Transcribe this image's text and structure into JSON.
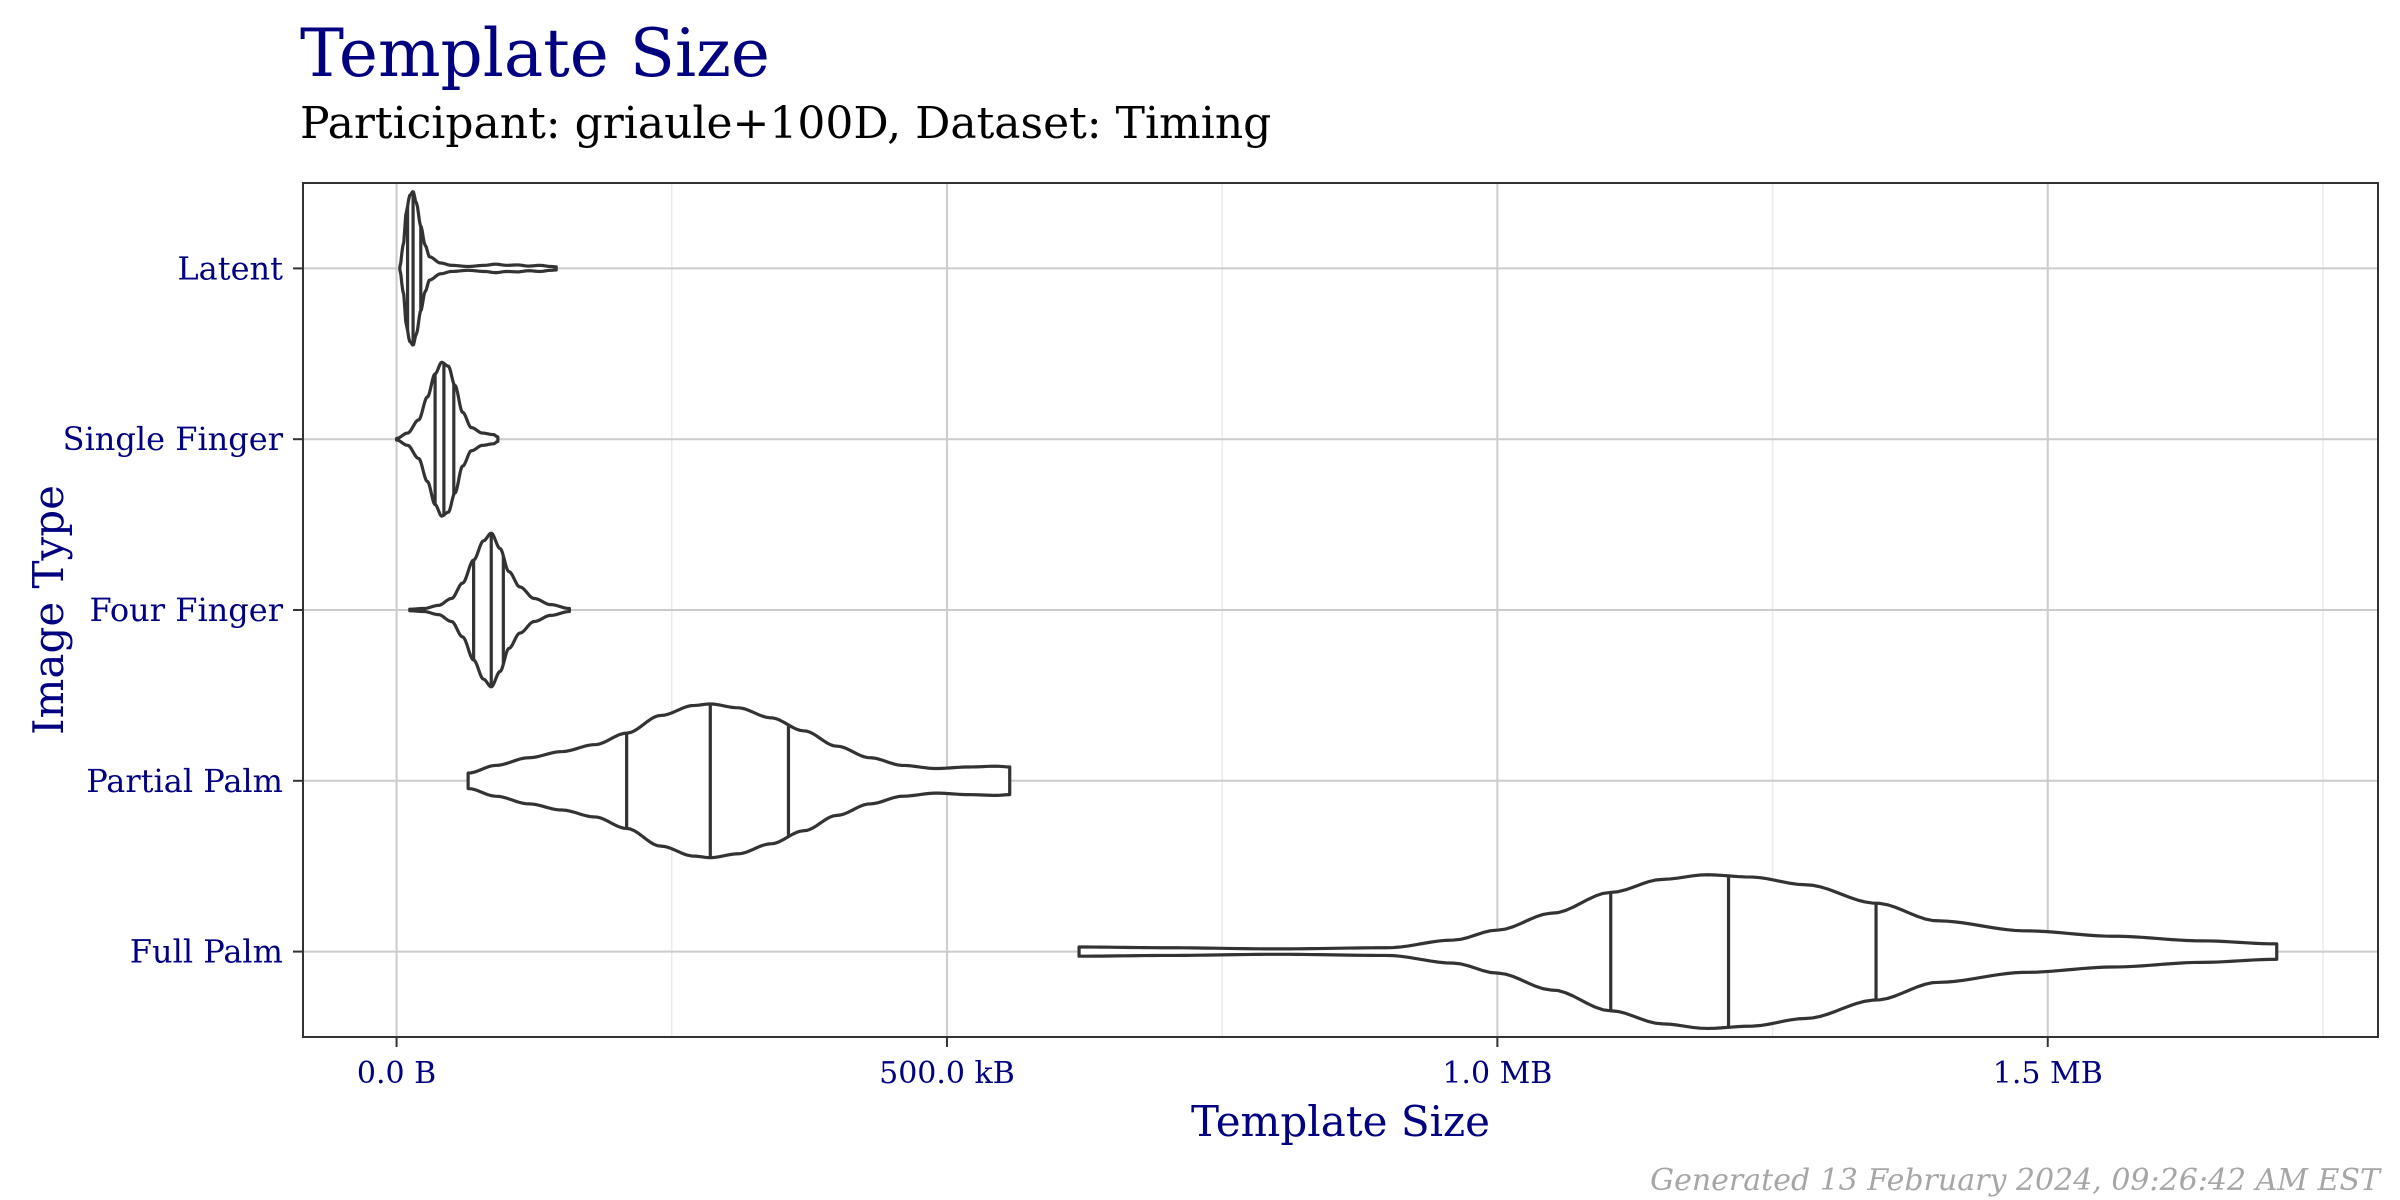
{
  "title": "Template Size",
  "subtitle": "Participant: griaule+100D, Dataset: Timing",
  "caption": "Generated 13 February 2024, 09:26:42 AM EST",
  "colors": {
    "title": "#000080",
    "axis_text": "#000080",
    "violin_stroke": "#333333",
    "grid_major": "#cccccc",
    "grid_minor": "#ebebeb",
    "caption": "#a6a6a6"
  },
  "chart_data": {
    "type": "violin",
    "orientation": "horizontal",
    "title": "Template Size",
    "subtitle": "Participant: griaule+100D, Dataset: Timing",
    "xlabel": "Template Size",
    "ylabel": "Image Type",
    "x_unit": "bytes",
    "xlim": [
      -85000,
      1800000
    ],
    "x_ticks": [
      {
        "value": 0,
        "label": "0.0 B"
      },
      {
        "value": 500000,
        "label": "500.0 kB"
      },
      {
        "value": 1000000,
        "label": "1.0 MB"
      },
      {
        "value": 1500000,
        "label": "1.5 MB"
      }
    ],
    "x_minor_ticks": [
      250000,
      750000,
      1250000,
      1750000
    ],
    "grid": true,
    "categories": [
      "Latent",
      "Single Finger",
      "Four Finger",
      "Partial Palm",
      "Full Palm"
    ],
    "series": [
      {
        "category": "Latent",
        "min": 3000,
        "max": 145000,
        "quantiles": [
          10000,
          15000,
          22000
        ],
        "density": [
          [
            3000,
            0.02
          ],
          [
            6000,
            0.3
          ],
          [
            9000,
            0.75
          ],
          [
            12000,
            0.95
          ],
          [
            15000,
            1.0
          ],
          [
            18000,
            0.85
          ],
          [
            22000,
            0.55
          ],
          [
            26000,
            0.3
          ],
          [
            30000,
            0.15
          ],
          [
            40000,
            0.07
          ],
          [
            50000,
            0.04
          ],
          [
            65000,
            0.025
          ],
          [
            80000,
            0.04
          ],
          [
            90000,
            0.055
          ],
          [
            100000,
            0.04
          ],
          [
            110000,
            0.045
          ],
          [
            120000,
            0.03
          ],
          [
            130000,
            0.04
          ],
          [
            140000,
            0.025
          ],
          [
            145000,
            0.02
          ]
        ]
      },
      {
        "category": "Single Finger",
        "min": 0,
        "max": 92000,
        "quantiles": [
          35000,
          43000,
          52000
        ],
        "density": [
          [
            0,
            0.01
          ],
          [
            10000,
            0.08
          ],
          [
            20000,
            0.25
          ],
          [
            28000,
            0.55
          ],
          [
            35000,
            0.85
          ],
          [
            41000,
            1.0
          ],
          [
            47000,
            0.95
          ],
          [
            53000,
            0.7
          ],
          [
            60000,
            0.35
          ],
          [
            68000,
            0.15
          ],
          [
            78000,
            0.08
          ],
          [
            88000,
            0.06
          ],
          [
            92000,
            0.03
          ]
        ]
      },
      {
        "category": "Four Finger",
        "min": 12000,
        "max": 157000,
        "quantiles": [
          70000,
          86000,
          97000
        ],
        "density": [
          [
            12000,
            0.01
          ],
          [
            25000,
            0.02
          ],
          [
            38000,
            0.06
          ],
          [
            50000,
            0.15
          ],
          [
            60000,
            0.35
          ],
          [
            70000,
            0.65
          ],
          [
            79000,
            0.9
          ],
          [
            86000,
            1.0
          ],
          [
            94000,
            0.8
          ],
          [
            102000,
            0.5
          ],
          [
            112000,
            0.3
          ],
          [
            125000,
            0.15
          ],
          [
            140000,
            0.07
          ],
          [
            157000,
            0.02
          ]
        ]
      },
      {
        "category": "Partial Palm",
        "min": 65000,
        "max": 557000,
        "quantiles": [
          209000,
          285000,
          356000
        ],
        "density": [
          [
            65000,
            0.1
          ],
          [
            90000,
            0.2
          ],
          [
            120000,
            0.3
          ],
          [
            150000,
            0.38
          ],
          [
            180000,
            0.47
          ],
          [
            209000,
            0.62
          ],
          [
            240000,
            0.85
          ],
          [
            270000,
            0.98
          ],
          [
            285000,
            1.0
          ],
          [
            310000,
            0.95
          ],
          [
            340000,
            0.82
          ],
          [
            370000,
            0.65
          ],
          [
            400000,
            0.45
          ],
          [
            430000,
            0.3
          ],
          [
            460000,
            0.2
          ],
          [
            490000,
            0.16
          ],
          [
            520000,
            0.18
          ],
          [
            545000,
            0.19
          ],
          [
            557000,
            0.18
          ]
        ]
      },
      {
        "category": "Full Palm",
        "min": 620000,
        "max": 1708000,
        "quantiles": [
          1103000,
          1210000,
          1344000
        ],
        "density": [
          [
            620000,
            0.06
          ],
          [
            700000,
            0.05
          ],
          [
            800000,
            0.035
          ],
          [
            900000,
            0.05
          ],
          [
            960000,
            0.15
          ],
          [
            1000000,
            0.28
          ],
          [
            1050000,
            0.5
          ],
          [
            1103000,
            0.77
          ],
          [
            1150000,
            0.94
          ],
          [
            1190000,
            1.0
          ],
          [
            1230000,
            0.97
          ],
          [
            1280000,
            0.87
          ],
          [
            1344000,
            0.63
          ],
          [
            1400000,
            0.4
          ],
          [
            1480000,
            0.27
          ],
          [
            1560000,
            0.2
          ],
          [
            1640000,
            0.14
          ],
          [
            1708000,
            0.1
          ]
        ]
      }
    ]
  }
}
